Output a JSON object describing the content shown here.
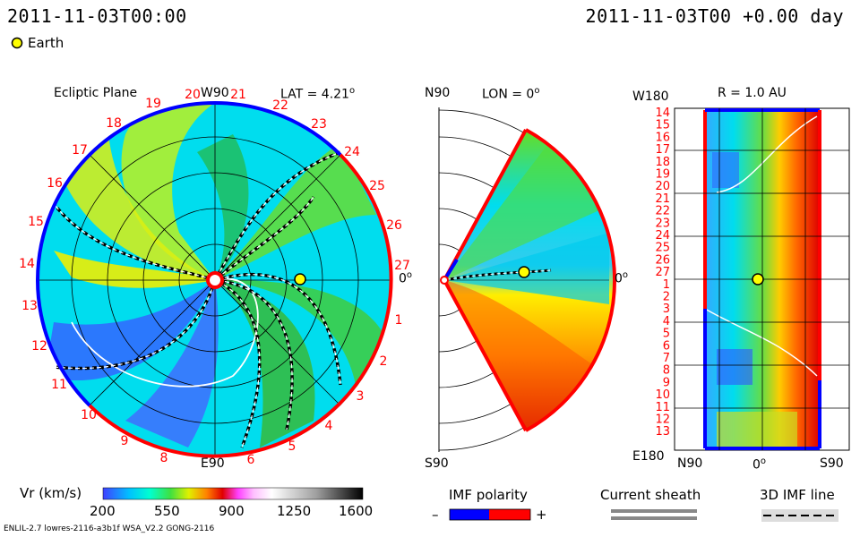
{
  "header": {
    "left_timestamp": "2011-11-03T00:00",
    "right_timestamp": "2011-11-03T00 +0.00 day"
  },
  "legend": {
    "earth_label": "Earth",
    "earth_color": "#ffff00"
  },
  "panels": {
    "ecliptic": {
      "title": "Ecliptic Plane",
      "top_label": "W90",
      "bottom_label": "E90",
      "right_label": "0",
      "right_label_sup": "o",
      "lat_label": "LAT = 4.21",
      "lat_sup": "o",
      "carrington_numbers": [
        "1",
        "2",
        "3",
        "4",
        "5",
        "6",
        "7",
        "8",
        "9",
        "10",
        "11",
        "12",
        "13",
        "14",
        "15",
        "16",
        "17",
        "18",
        "19",
        "20",
        "21",
        "22",
        "23",
        "24",
        "25",
        "26",
        "27"
      ]
    },
    "meridional": {
      "top_left_label": "N90",
      "lon_label": "LON = 0",
      "lon_sup": "o",
      "right_label": "0",
      "right_label_sup": "o",
      "bottom_label": "S90"
    },
    "radial": {
      "top_left_label": "W180",
      "r_label": "R = 1.0 AU",
      "bottom_left_label": "E180",
      "bottom_labels": [
        "N90",
        "0",
        "S90"
      ],
      "bottom_mid_sup": "o",
      "row_labels": [
        "14",
        "15",
        "16",
        "17",
        "18",
        "19",
        "20",
        "21",
        "22",
        "23",
        "24",
        "25",
        "26",
        "27",
        "1",
        "2",
        "3",
        "4",
        "5",
        "6",
        "7",
        "8",
        "9",
        "10",
        "11",
        "12",
        "13"
      ]
    }
  },
  "colorbar": {
    "label": "Vr (km/s)",
    "ticks": [
      "200",
      "550",
      "900",
      "1250",
      "1600"
    ]
  },
  "imf": {
    "label": "IMF polarity",
    "minus": "–",
    "plus": "+",
    "negative_color": "#0000ff",
    "positive_color": "#ff0000"
  },
  "current_sheath": {
    "label": "Current sheath"
  },
  "imf_line": {
    "label": "3D IMF line"
  },
  "footer": {
    "model_info": "ENLIL-2.7 lowres-2116-a3b1f WSA_V2.2 GONG-2116"
  },
  "colors": {
    "background_field": "#00ddee",
    "blue_polarity": "#0000ff",
    "red_polarity": "#ff0000",
    "carrington_number_color": "#ff0000"
  }
}
